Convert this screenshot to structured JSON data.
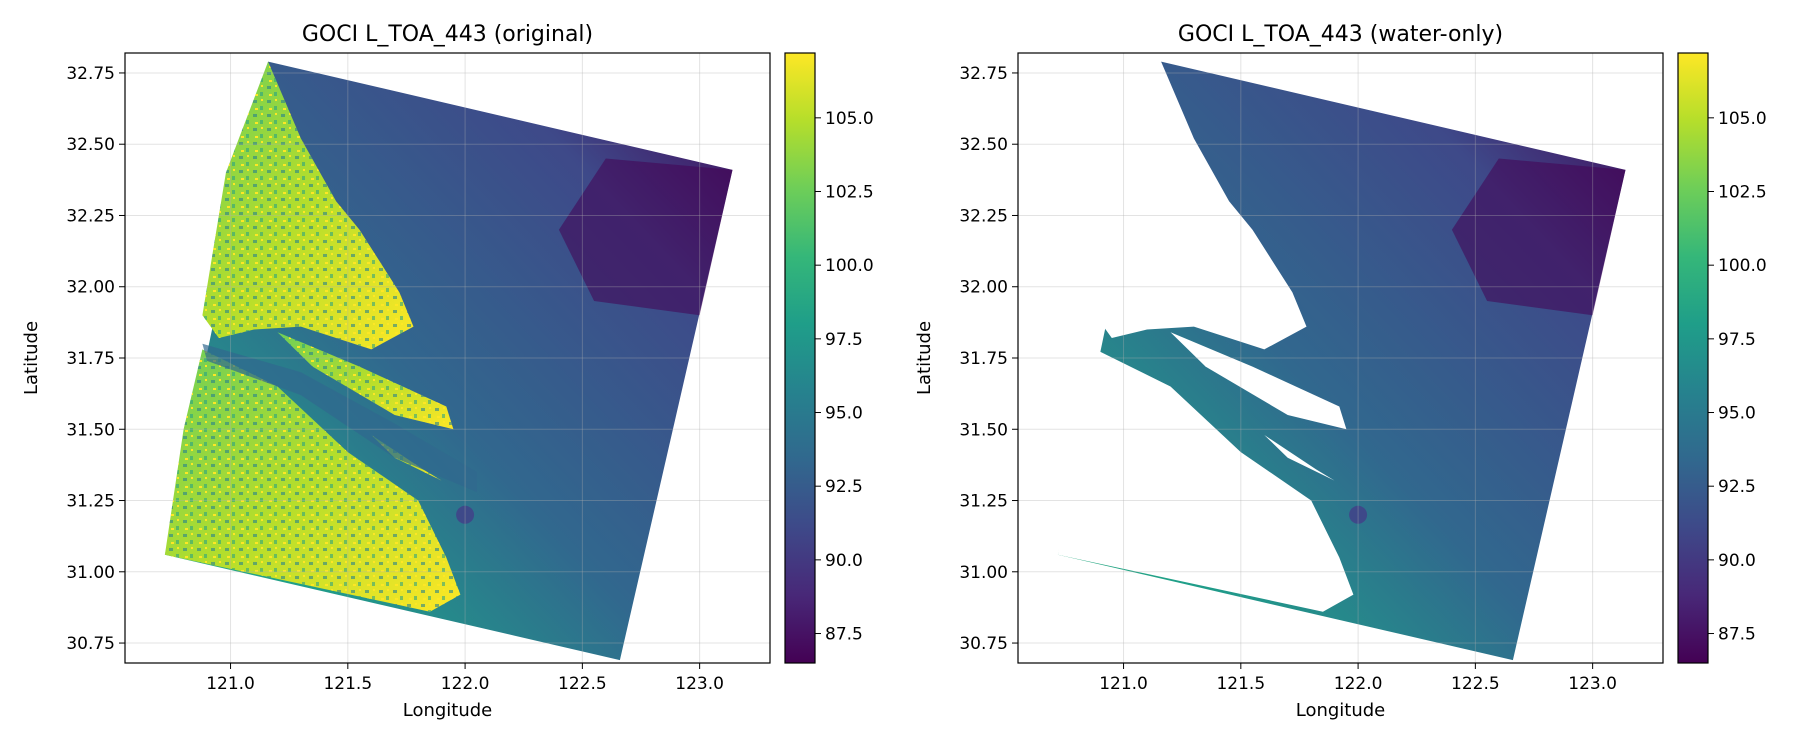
{
  "colorscale": [
    "#440154",
    "#482878",
    "#3e4989",
    "#31688e",
    "#26828e",
    "#1f9e89",
    "#35b779",
    "#6ece58",
    "#b5de2b",
    "#fde725"
  ],
  "chart_data": [
    {
      "type": "heatmap",
      "title": "GOCI L_TOA_443 (original)",
      "xlabel": "Longitude",
      "ylabel": "Latitude",
      "xlim": [
        120.55,
        123.3
      ],
      "ylim": [
        30.68,
        32.82
      ],
      "xticks": [
        "121.0",
        "121.5",
        "122.0",
        "122.5",
        "123.0"
      ],
      "yticks": [
        "30.75",
        "31.00",
        "31.25",
        "31.50",
        "31.75",
        "32.00",
        "32.25",
        "32.50",
        "32.75"
      ],
      "grid": true,
      "colorbar": {
        "range": [
          86.5,
          107.2
        ],
        "ticks": [
          "87.5",
          "90.0",
          "92.5",
          "95.0",
          "97.5",
          "100.0",
          "102.5",
          "105.0"
        ]
      },
      "scene_footprint_lonlat": [
        [
          121.16,
          32.79
        ],
        [
          123.14,
          32.41
        ],
        [
          122.66,
          30.69
        ],
        [
          120.72,
          31.06
        ]
      ],
      "land_included": true
    },
    {
      "type": "heatmap",
      "title": "GOCI L_TOA_443 (water-only)",
      "xlabel": "Longitude",
      "ylabel": "Latitude",
      "xlim": [
        120.55,
        123.3
      ],
      "ylim": [
        30.68,
        32.82
      ],
      "xticks": [
        "121.0",
        "121.5",
        "122.0",
        "122.5",
        "123.0"
      ],
      "yticks": [
        "30.75",
        "31.00",
        "31.25",
        "31.50",
        "31.75",
        "32.00",
        "32.25",
        "32.50",
        "32.75"
      ],
      "grid": true,
      "colorbar": {
        "range": [
          86.5,
          107.2
        ],
        "ticks": [
          "87.5",
          "90.0",
          "92.5",
          "95.0",
          "97.5",
          "100.0",
          "102.5",
          "105.0"
        ]
      },
      "scene_footprint_lonlat": [
        [
          121.16,
          32.79
        ],
        [
          123.14,
          32.41
        ],
        [
          122.66,
          30.69
        ],
        [
          120.72,
          31.06
        ]
      ],
      "land_included": false
    }
  ]
}
